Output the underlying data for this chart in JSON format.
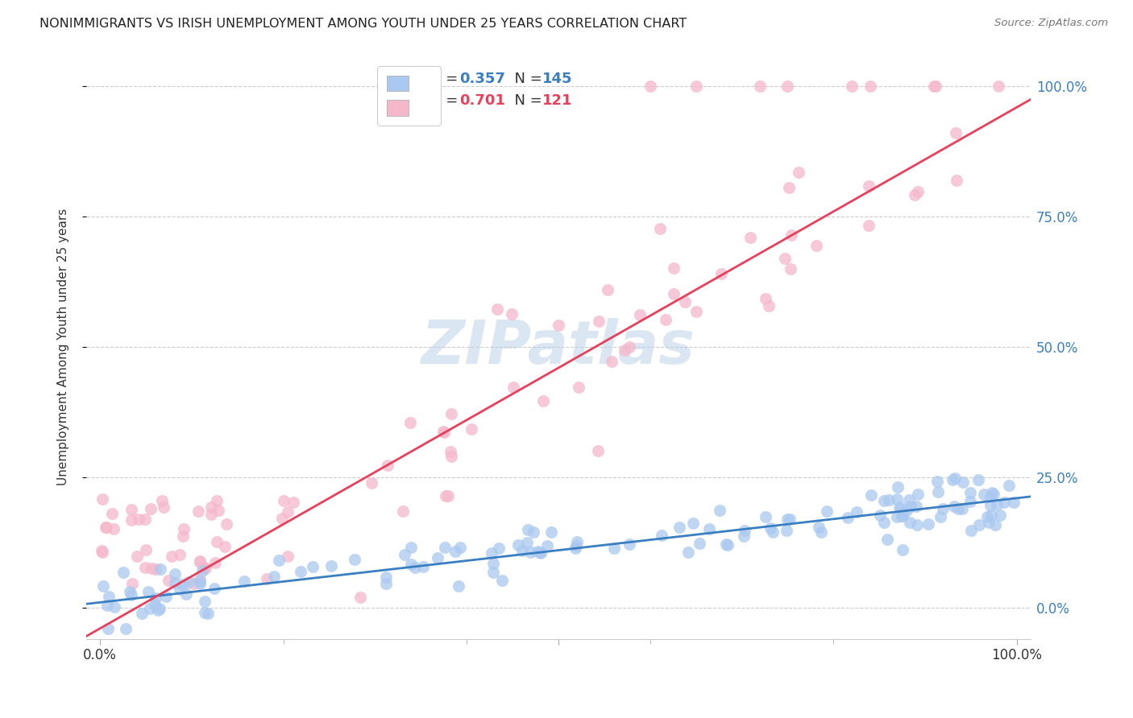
{
  "title": "NONIMMIGRANTS VS IRISH UNEMPLOYMENT AMONG YOUTH UNDER 25 YEARS CORRELATION CHART",
  "source": "Source: ZipAtlas.com",
  "ylabel": "Unemployment Among Youth under 25 years",
  "ytick_labels": [
    "0.0%",
    "25.0%",
    "50.0%",
    "75.0%",
    "100.0%"
  ],
  "ytick_values": [
    0.0,
    0.25,
    0.5,
    0.75,
    1.0
  ],
  "blue_R": 0.357,
  "blue_N": 145,
  "pink_R": 0.701,
  "pink_N": 121,
  "blue_color": "#aac9f0",
  "pink_color": "#f5b8cb",
  "blue_line_color": "#3a7fc1",
  "pink_line_color": "#e8405a",
  "legend_text_color": "#3a7fc1",
  "watermark": "ZIPatlas",
  "xlim": [
    0.0,
    1.0
  ],
  "ylim": [
    -0.06,
    1.06
  ],
  "blue_slope": 0.2,
  "blue_intercept": 0.01,
  "pink_slope": 1.0,
  "pink_intercept": -0.04
}
